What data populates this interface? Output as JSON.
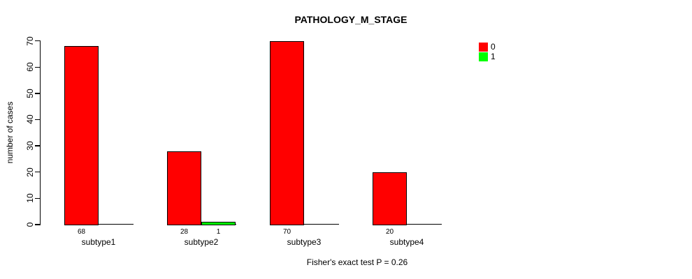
{
  "chart_data": {
    "type": "bar",
    "title": "PATHOLOGY_M_STAGE",
    "xlabel": "",
    "ylabel": "number of cases",
    "categories": [
      "subtype1",
      "subtype2",
      "subtype3",
      "subtype4"
    ],
    "series": [
      {
        "name": "0",
        "color": "#FF0000",
        "values": [
          68,
          28,
          70,
          20
        ]
      },
      {
        "name": "1",
        "color": "#00FF00",
        "values": [
          0,
          1,
          0,
          0
        ]
      }
    ],
    "visible_bar_value_labels": [
      "68",
      "28",
      "1",
      "70",
      "20"
    ],
    "ylim": [
      0,
      70
    ],
    "yticks": [
      0,
      10,
      20,
      30,
      40,
      50,
      60,
      70
    ],
    "grid": false,
    "legend": {
      "position": "top-right",
      "entries": [
        {
          "label": "0",
          "color": "#FF0000"
        },
        {
          "label": "1",
          "color": "#00FF00"
        }
      ]
    },
    "annotation": "Fisher's exact test P = 0.26"
  }
}
